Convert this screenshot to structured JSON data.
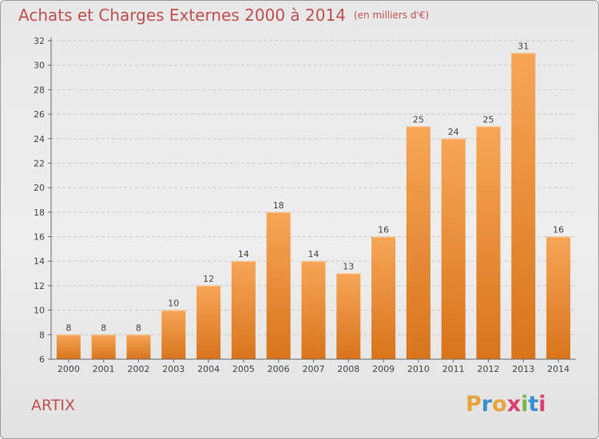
{
  "header": {
    "title": "Achats et Charges Externes 2000 à 2014",
    "subtitle": "(en milliers d'€)"
  },
  "footer": {
    "commune": "ARTIX",
    "logo_letters": [
      "P",
      "r",
      "o",
      "x",
      "i",
      "t",
      "i"
    ]
  },
  "colors": {
    "title": "#c0504d",
    "bar_top": "#f6a657",
    "bar_bottom": "#d9741b",
    "logo": [
      "#e8a33a",
      "#3a8fd0",
      "#e8a33a",
      "#d93e6e",
      "#7ab648",
      "#3a8fd0",
      "#d93e6e"
    ]
  },
  "chart_data": {
    "type": "bar",
    "title": "Achats et Charges Externes 2000 à 2014",
    "subtitle": "(en milliers d'€)",
    "xlabel": "",
    "ylabel": "",
    "categories": [
      "2000",
      "2001",
      "2002",
      "2003",
      "2004",
      "2005",
      "2006",
      "2007",
      "2008",
      "2009",
      "2010",
      "2011",
      "2012",
      "2013",
      "2014"
    ],
    "values": [
      8,
      8,
      8,
      10,
      12,
      14,
      18,
      14,
      13,
      16,
      25,
      24,
      25,
      31,
      16
    ],
    "ylim": [
      6,
      32
    ],
    "yticks": [
      6,
      8,
      10,
      12,
      14,
      16,
      18,
      20,
      22,
      24,
      26,
      28,
      30,
      32
    ],
    "grid": true,
    "legend": "none"
  }
}
